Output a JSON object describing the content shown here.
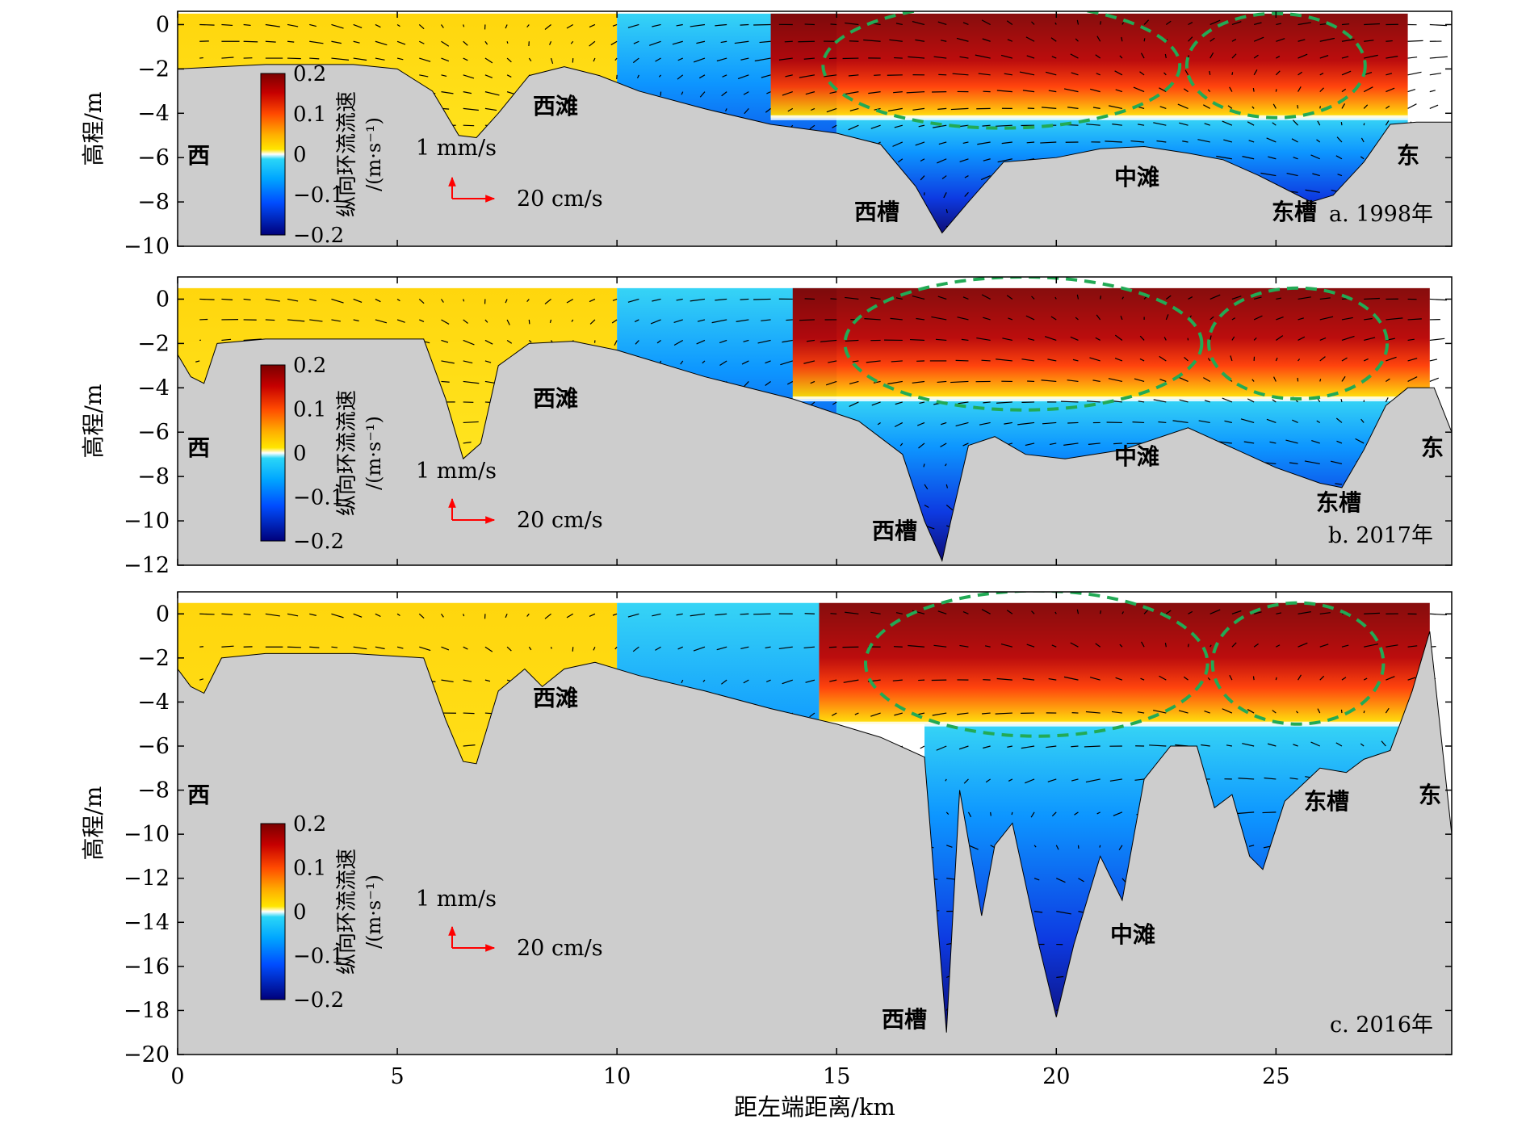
{
  "figure": {
    "xlabel": "距左端距离/km",
    "x_ticks": [
      0,
      5,
      10,
      15,
      20,
      25
    ],
    "xlim": [
      0,
      29
    ]
  },
  "chart_data": [
    {
      "type": "heatmap",
      "panel_label": "a. 1998年",
      "ylabel": "高程/m",
      "ylim": [
        -10,
        0.6
      ],
      "y_ticks": [
        0,
        -2,
        -4,
        -6,
        -8,
        -10
      ],
      "colorbar": {
        "label": "纵向环流流速",
        "unit": "/(m·s⁻¹)",
        "ticks": [
          "0.2",
          "0.1",
          "0",
          "−0.1",
          "−0.2"
        ],
        "range": [
          -0.2,
          0.2
        ]
      },
      "scale_vertical": "1 mm/s",
      "scale_horizontal": "20 cm/s",
      "annotations": [
        "西",
        "西滩",
        "西槽",
        "中滩",
        "东槽",
        "东"
      ],
      "bed_profile": {
        "x": [
          0,
          1,
          2,
          3,
          4,
          5,
          5.8,
          6.4,
          6.8,
          7.3,
          8,
          8.8,
          9.6,
          10.5,
          12,
          13.5,
          15,
          16,
          16.8,
          17.4,
          18,
          18.8,
          20,
          21,
          22,
          23,
          23.8,
          24.6,
          25.3,
          25.8,
          26.3,
          27,
          27.6,
          28.2,
          29
        ],
        "y": [
          -2.0,
          -1.9,
          -1.8,
          -1.8,
          -1.8,
          -2.0,
          -3.0,
          -5.0,
          -5.1,
          -4.0,
          -2.3,
          -1.9,
          -2.3,
          -3.0,
          -3.8,
          -4.5,
          -4.9,
          -5.4,
          -7.3,
          -9.4,
          -8.0,
          -6.2,
          -6.0,
          -5.6,
          -5.5,
          -5.8,
          -6.1,
          -6.8,
          -7.5,
          -8.0,
          -7.7,
          -6.2,
          -4.5,
          -4.4,
          -4.4
        ]
      },
      "flow_zones": [
        {
          "x": [
            0,
            10
          ],
          "sign": "positive",
          "strength": 0.05
        },
        {
          "x": [
            10,
            15
          ],
          "sign": "negative",
          "strength": -0.06
        },
        {
          "x": [
            13.5,
            28
          ],
          "y_top": 0.5,
          "y_bottom": -4.2,
          "sign": "positive",
          "strength": 0.2
        },
        {
          "x": [
            15,
            28
          ],
          "y_top": -4.2,
          "y_bottom": -9.4,
          "sign": "negative",
          "strength": -0.15
        }
      ]
    },
    {
      "type": "heatmap",
      "panel_label": "b. 2017年",
      "ylabel": "高程/m",
      "ylim": [
        -12,
        1
      ],
      "y_ticks": [
        0,
        -2,
        -4,
        -6,
        -8,
        -10,
        -12
      ],
      "colorbar": {
        "label": "纵向环流流速",
        "unit": "/(m·s⁻¹)",
        "ticks": [
          "0.2",
          "0.1",
          "0",
          "−0.1",
          "−0.2"
        ],
        "range": [
          -0.2,
          0.2
        ]
      },
      "scale_vertical": "1 mm/s",
      "scale_horizontal": "20 cm/s",
      "annotations": [
        "西",
        "西滩",
        "西槽",
        "中滩",
        "东槽",
        "东"
      ],
      "bed_profile": {
        "x": [
          0,
          0.3,
          0.6,
          0.9,
          2,
          4,
          5.6,
          6.1,
          6.5,
          6.9,
          7.3,
          8,
          9,
          10,
          12,
          14,
          15.5,
          16.5,
          17,
          17.4,
          17.6,
          18,
          18.6,
          19.3,
          20.2,
          21.5,
          23,
          24,
          25,
          26,
          26.5,
          27,
          27.5,
          28,
          28.6,
          29
        ],
        "y": [
          -2.5,
          -3.5,
          -3.8,
          -2.0,
          -1.8,
          -1.8,
          -1.8,
          -4.5,
          -7.2,
          -6.5,
          -3.0,
          -2.0,
          -1.9,
          -2.3,
          -3.5,
          -4.5,
          -5.5,
          -7.0,
          -10.0,
          -11.8,
          -10.0,
          -6.6,
          -6.2,
          -7.0,
          -7.2,
          -6.8,
          -5.8,
          -6.7,
          -7.6,
          -8.3,
          -8.5,
          -6.8,
          -4.8,
          -4.0,
          -4.0,
          -6.0
        ]
      },
      "flow_zones": [
        {
          "x": [
            0,
            10
          ],
          "sign": "positive",
          "strength": 0.05
        },
        {
          "x": [
            10,
            15
          ],
          "sign": "negative",
          "strength": -0.06
        },
        {
          "x": [
            14,
            28.5
          ],
          "y_top": 0.5,
          "y_bottom": -4.5,
          "sign": "positive",
          "strength": 0.2
        },
        {
          "x": [
            15,
            28.5
          ],
          "y_top": -4.5,
          "y_bottom": -11.8,
          "sign": "negative",
          "strength": -0.15
        }
      ]
    },
    {
      "type": "heatmap",
      "panel_label": "c. 2016年",
      "ylabel": "高程/m",
      "ylim": [
        -20,
        1
      ],
      "y_ticks": [
        0,
        -2,
        -4,
        -6,
        -8,
        -10,
        -12,
        -14,
        -16,
        -18,
        -20
      ],
      "colorbar": {
        "label": "纵向环流流速",
        "unit": "/(m·s⁻¹)",
        "ticks": [
          "0.2",
          "0.1",
          "0",
          "−0.1",
          "−0.2"
        ],
        "range": [
          -0.2,
          0.2
        ]
      },
      "scale_vertical": "1 mm/s",
      "scale_horizontal": "20 cm/s",
      "annotations": [
        "西",
        "西滩",
        "西槽",
        "中滩",
        "东槽",
        "东"
      ],
      "bed_profile": {
        "x": [
          0,
          0.3,
          0.6,
          1,
          2,
          4,
          5.6,
          6.1,
          6.5,
          6.8,
          7.3,
          7.9,
          8.3,
          8.8,
          9.5,
          10.5,
          12,
          13.5,
          15,
          16,
          17,
          17.5,
          17.8,
          18.3,
          18.6,
          19,
          19.6,
          20,
          20.4,
          21,
          21.5,
          22,
          22.6,
          23.2,
          23.6,
          24,
          24.4,
          24.7,
          25.2,
          26,
          26.6,
          27,
          27.6,
          28.1,
          28.5,
          29
        ],
        "y": [
          -2.5,
          -3.3,
          -3.6,
          -2.0,
          -1.8,
          -1.8,
          -2.0,
          -4.8,
          -6.7,
          -6.8,
          -3.5,
          -2.5,
          -3.3,
          -2.5,
          -2.2,
          -2.8,
          -3.5,
          -4.3,
          -5.0,
          -5.6,
          -6.5,
          -19.0,
          -8.0,
          -13.7,
          -10.5,
          -9.5,
          -15.0,
          -18.3,
          -15.0,
          -11.0,
          -13.0,
          -7.5,
          -6.0,
          -6.0,
          -8.8,
          -8.2,
          -11.0,
          -11.6,
          -8.5,
          -7.0,
          -7.2,
          -6.6,
          -6.2,
          -3.5,
          -0.8,
          -10.0
        ]
      },
      "flow_zones": [
        {
          "x": [
            0,
            10
          ],
          "sign": "positive",
          "strength": 0.05
        },
        {
          "x": [
            10,
            14.6
          ],
          "sign": "negative",
          "strength": -0.06
        },
        {
          "x": [
            14.6,
            28.5
          ],
          "y_top": 0.5,
          "y_bottom": -5.0,
          "sign": "positive",
          "strength": 0.2
        },
        {
          "x": [
            17,
            28.5
          ],
          "y_top": -5.0,
          "y_bottom": -19,
          "sign": "mixed",
          "strength": -0.15
        }
      ]
    }
  ]
}
